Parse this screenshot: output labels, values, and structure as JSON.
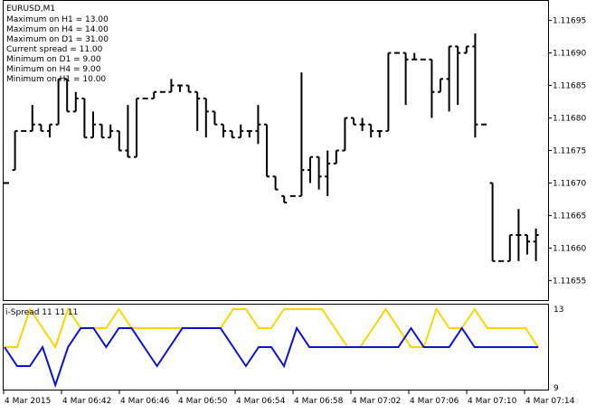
{
  "window": {
    "symbol_label": "EURUSD,M1"
  },
  "info_lines": [
    "Maximum on H1 = 13.00",
    "Maximum on H4 = 14.00",
    "Maximum on D1 = 31.00",
    "Current spread = 11.00",
    "Minimum on D1 = 9.00",
    "Minimum on H4 = 9.00",
    "Minimum on H1 = 10.00"
  ],
  "indicator": {
    "label": "i-Spread 11 11 11",
    "scale_max_label": "13",
    "scale_min_label": "9"
  },
  "colors": {
    "background": "#ffffff",
    "frame": "#000000",
    "bars": "#000000",
    "series_max": "#FFD400",
    "series_min": "#0A14C8"
  },
  "chart_data": [
    {
      "type": "ohlc",
      "symbol": "EURUSD",
      "timeframe": "M1",
      "ylim": [
        1.11652,
        1.11698
      ],
      "y_ticks": [
        1.11655,
        1.1166,
        1.11665,
        1.1167,
        1.11675,
        1.1168,
        1.11685,
        1.1169,
        1.11695
      ],
      "y_tick_labels": [
        "1.11655",
        "1.11660",
        "1.11665",
        "1.11670",
        "1.11675",
        "1.11680",
        "1.11685",
        "1.11690",
        "1.11695"
      ],
      "x_tick_labels": [
        "4 Mar 2015",
        "4 Mar 06:42",
        "4 Mar 06:46",
        "4 Mar 06:50",
        "4 Mar 06:54",
        "4 Mar 06:58",
        "4 Mar 07:02",
        "4 Mar 07:06",
        "4 Mar 07:10",
        "4 Mar 07:14"
      ],
      "bars": [
        {
          "o": 1.1167,
          "h": 1.1167,
          "l": 1.1167,
          "c": 1.1167
        },
        {
          "o": 1.11672,
          "h": 1.11678,
          "l": 1.11672,
          "c": 1.11678
        },
        {
          "o": 1.11678,
          "h": 1.11678,
          "l": 1.11678,
          "c": 1.11678
        },
        {
          "o": 1.11678,
          "h": 1.11682,
          "l": 1.11678,
          "c": 1.11679
        },
        {
          "o": 1.11679,
          "h": 1.11679,
          "l": 1.11678,
          "c": 1.11678
        },
        {
          "o": 1.11678,
          "h": 1.11679,
          "l": 1.11677,
          "c": 1.11679
        },
        {
          "o": 1.11679,
          "h": 1.11686,
          "l": 1.11679,
          "c": 1.11686
        },
        {
          "o": 1.11686,
          "h": 1.11686,
          "l": 1.11681,
          "c": 1.11681
        },
        {
          "o": 1.11681,
          "h": 1.11684,
          "l": 1.11681,
          "c": 1.11683
        },
        {
          "o": 1.11683,
          "h": 1.11683,
          "l": 1.11677,
          "c": 1.11677
        },
        {
          "o": 1.11677,
          "h": 1.11681,
          "l": 1.11677,
          "c": 1.11679
        },
        {
          "o": 1.11679,
          "h": 1.11679,
          "l": 1.11677,
          "c": 1.11677
        },
        {
          "o": 1.11677,
          "h": 1.11679,
          "l": 1.11677,
          "c": 1.11678
        },
        {
          "o": 1.11678,
          "h": 1.11678,
          "l": 1.11675,
          "c": 1.11675
        },
        {
          "o": 1.11675,
          "h": 1.11682,
          "l": 1.11674,
          "c": 1.11674
        },
        {
          "o": 1.11674,
          "h": 1.11683,
          "l": 1.11674,
          "c": 1.11683
        },
        {
          "o": 1.11683,
          "h": 1.11683,
          "l": 1.11683,
          "c": 1.11683
        },
        {
          "o": 1.11683,
          "h": 1.11684,
          "l": 1.11683,
          "c": 1.11684
        },
        {
          "o": 1.11684,
          "h": 1.11684,
          "l": 1.11684,
          "c": 1.11684
        },
        {
          "o": 1.11684,
          "h": 1.11686,
          "l": 1.11684,
          "c": 1.11685
        },
        {
          "o": 1.11685,
          "h": 1.11685,
          "l": 1.11684,
          "c": 1.11685
        },
        {
          "o": 1.11685,
          "h": 1.11685,
          "l": 1.11684,
          "c": 1.11684
        },
        {
          "o": 1.11684,
          "h": 1.11684,
          "l": 1.11678,
          "c": 1.11683
        },
        {
          "o": 1.11683,
          "h": 1.11683,
          "l": 1.11677,
          "c": 1.11681
        },
        {
          "o": 1.11681,
          "h": 1.11681,
          "l": 1.11679,
          "c": 1.11679
        },
        {
          "o": 1.11679,
          "h": 1.11679,
          "l": 1.11677,
          "c": 1.11678
        },
        {
          "o": 1.11678,
          "h": 1.11678,
          "l": 1.11677,
          "c": 1.11677
        },
        {
          "o": 1.11677,
          "h": 1.11679,
          "l": 1.11677,
          "c": 1.11678
        },
        {
          "o": 1.11678,
          "h": 1.11678,
          "l": 1.11677,
          "c": 1.11678
        },
        {
          "o": 1.11678,
          "h": 1.11682,
          "l": 1.11676,
          "c": 1.11679
        },
        {
          "o": 1.11679,
          "h": 1.11679,
          "l": 1.11671,
          "c": 1.11671
        },
        {
          "o": 1.11671,
          "h": 1.11671,
          "l": 1.11669,
          "c": 1.11669
        },
        {
          "o": 1.11668,
          "h": 1.11668,
          "l": 1.11667,
          "c": 1.11667
        },
        {
          "o": 1.11668,
          "h": 1.11668,
          "l": 1.11668,
          "c": 1.11668
        },
        {
          "o": 1.11668,
          "h": 1.11687,
          "l": 1.11668,
          "c": 1.11672
        },
        {
          "o": 1.11672,
          "h": 1.11674,
          "l": 1.1167,
          "c": 1.11674
        },
        {
          "o": 1.11674,
          "h": 1.11674,
          "l": 1.11669,
          "c": 1.11671
        },
        {
          "o": 1.11671,
          "h": 1.11675,
          "l": 1.11668,
          "c": 1.11673
        },
        {
          "o": 1.11673,
          "h": 1.11675,
          "l": 1.11673,
          "c": 1.11675
        },
        {
          "o": 1.11675,
          "h": 1.1168,
          "l": 1.11675,
          "c": 1.1168
        },
        {
          "o": 1.1168,
          "h": 1.1168,
          "l": 1.11679,
          "c": 1.11679
        },
        {
          "o": 1.11679,
          "h": 1.1168,
          "l": 1.11678,
          "c": 1.11679
        },
        {
          "o": 1.11679,
          "h": 1.11679,
          "l": 1.11677,
          "c": 1.11678
        },
        {
          "o": 1.11678,
          "h": 1.11678,
          "l": 1.11677,
          "c": 1.11678
        },
        {
          "o": 1.11678,
          "h": 1.1169,
          "l": 1.11678,
          "c": 1.1169
        },
        {
          "o": 1.1169,
          "h": 1.1169,
          "l": 1.1169,
          "c": 1.1169
        },
        {
          "o": 1.1169,
          "h": 1.1169,
          "l": 1.11682,
          "c": 1.11689
        },
        {
          "o": 1.11689,
          "h": 1.1169,
          "l": 1.11689,
          "c": 1.11689
        },
        {
          "o": 1.11689,
          "h": 1.11689,
          "l": 1.11689,
          "c": 1.11689
        },
        {
          "o": 1.11689,
          "h": 1.11689,
          "l": 1.1168,
          "c": 1.11684
        },
        {
          "o": 1.11684,
          "h": 1.11686,
          "l": 1.11684,
          "c": 1.11686
        },
        {
          "o": 1.11686,
          "h": 1.11691,
          "l": 1.11681,
          "c": 1.11691
        },
        {
          "o": 1.11691,
          "h": 1.11691,
          "l": 1.11682,
          "c": 1.1169
        },
        {
          "o": 1.1169,
          "h": 1.11691,
          "l": 1.1169,
          "c": 1.11691
        },
        {
          "o": 1.11691,
          "h": 1.11693,
          "l": 1.11677,
          "c": 1.11679
        },
        {
          "o": 1.11679,
          "h": 1.11679,
          "l": 1.11679,
          "c": 1.11679
        },
        {
          "o": 1.1167,
          "h": 1.1167,
          "l": 1.11658,
          "c": 1.11658
        },
        {
          "o": 1.11658,
          "h": 1.11658,
          "l": 1.11658,
          "c": 1.11658
        },
        {
          "o": 1.11658,
          "h": 1.11662,
          "l": 1.11658,
          "c": 1.11662
        },
        {
          "o": 1.11662,
          "h": 1.11666,
          "l": 1.11658,
          "c": 1.11662
        },
        {
          "o": 1.11662,
          "h": 1.11662,
          "l": 1.11659,
          "c": 1.11661
        },
        {
          "o": 1.11661,
          "h": 1.11663,
          "l": 1.11658,
          "c": 1.11662
        }
      ]
    },
    {
      "type": "line",
      "title": "i-Spread 11 11 11",
      "ylim": [
        9,
        13
      ],
      "series": [
        {
          "color": "#FFD400",
          "values": [
            11,
            11,
            13,
            12,
            11,
            13,
            12,
            12,
            12,
            13,
            12,
            12,
            12,
            12,
            12,
            12,
            12,
            12,
            13,
            13,
            12,
            12,
            13,
            13,
            13,
            13,
            12,
            11,
            11,
            12,
            13,
            12,
            11,
            11,
            13,
            12,
            12,
            13,
            12,
            12,
            12,
            12,
            11
          ]
        },
        {
          "color": "#0A14C8",
          "values": [
            11,
            10,
            10,
            11,
            9,
            11,
            12,
            12,
            11,
            12,
            12,
            11,
            10,
            11,
            12,
            12,
            12,
            12,
            11,
            10,
            11,
            11,
            10,
            12,
            11,
            11,
            11,
            11,
            11,
            11,
            11,
            11,
            12,
            11,
            11,
            11,
            12,
            11,
            11,
            11,
            11,
            11,
            11
          ]
        }
      ]
    }
  ]
}
